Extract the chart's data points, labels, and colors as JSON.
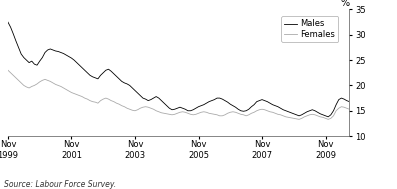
{
  "title": "",
  "ylabel_right": "%",
  "source": "Source: Labour Force Survey.",
  "ylim": [
    10,
    35
  ],
  "yticks": [
    10,
    15,
    20,
    25,
    30,
    35
  ],
  "x_tick_labels": [
    "Nov\n1999",
    "Nov\n2001",
    "Nov\n2003",
    "Nov\n2005",
    "Nov\n2007",
    "Nov\n2009"
  ],
  "x_tick_positions": [
    0,
    24,
    48,
    72,
    96,
    120
  ],
  "males_color": "#000000",
  "females_color": "#aaaaaa",
  "background_color": "#ffffff",
  "legend_labels": [
    "Males",
    "Females"
  ],
  "males_data": [
    32.5,
    31.5,
    30.2,
    28.8,
    27.5,
    26.2,
    25.5,
    25.0,
    24.5,
    24.8,
    24.2,
    24.0,
    24.8,
    25.5,
    26.5,
    27.0,
    27.2,
    27.0,
    26.8,
    26.7,
    26.5,
    26.3,
    26.0,
    25.7,
    25.4,
    25.0,
    24.5,
    24.0,
    23.5,
    23.0,
    22.5,
    22.0,
    21.7,
    21.5,
    21.3,
    22.0,
    22.5,
    23.0,
    23.2,
    22.8,
    22.3,
    21.8,
    21.3,
    20.8,
    20.5,
    20.3,
    20.0,
    19.5,
    19.0,
    18.5,
    18.0,
    17.5,
    17.3,
    17.0,
    17.2,
    17.5,
    17.8,
    17.5,
    17.0,
    16.5,
    16.0,
    15.5,
    15.2,
    15.3,
    15.5,
    15.7,
    15.5,
    15.3,
    15.0,
    15.0,
    15.2,
    15.5,
    15.8,
    16.0,
    16.2,
    16.5,
    16.8,
    17.0,
    17.2,
    17.5,
    17.5,
    17.3,
    17.0,
    16.7,
    16.3,
    16.0,
    15.7,
    15.3,
    15.0,
    14.9,
    15.0,
    15.3,
    15.8,
    16.2,
    16.8,
    17.0,
    17.2,
    17.0,
    16.8,
    16.5,
    16.2,
    16.0,
    15.8,
    15.5,
    15.2,
    15.0,
    14.8,
    14.6,
    14.4,
    14.2,
    14.0,
    14.2,
    14.5,
    14.8,
    15.0,
    15.2,
    15.0,
    14.7,
    14.4,
    14.2,
    14.0,
    13.8,
    14.2,
    15.0,
    16.2,
    17.2,
    17.5,
    17.3,
    17.0,
    16.8
  ],
  "females_data": [
    23.0,
    22.5,
    22.0,
    21.5,
    21.0,
    20.5,
    20.0,
    19.7,
    19.5,
    19.8,
    20.0,
    20.3,
    20.7,
    21.0,
    21.2,
    21.0,
    20.8,
    20.5,
    20.2,
    20.0,
    19.8,
    19.5,
    19.2,
    18.9,
    18.6,
    18.4,
    18.2,
    18.0,
    17.8,
    17.5,
    17.3,
    17.0,
    16.8,
    16.7,
    16.5,
    17.0,
    17.3,
    17.5,
    17.3,
    17.0,
    16.8,
    16.5,
    16.3,
    16.0,
    15.8,
    15.5,
    15.3,
    15.1,
    15.0,
    15.2,
    15.5,
    15.7,
    15.8,
    15.7,
    15.5,
    15.3,
    15.0,
    14.8,
    14.6,
    14.5,
    14.4,
    14.3,
    14.2,
    14.3,
    14.5,
    14.7,
    14.8,
    14.7,
    14.5,
    14.3,
    14.2,
    14.3,
    14.5,
    14.7,
    14.8,
    14.7,
    14.5,
    14.4,
    14.3,
    14.2,
    14.0,
    14.0,
    14.2,
    14.5,
    14.7,
    14.8,
    14.7,
    14.5,
    14.3,
    14.2,
    14.0,
    14.2,
    14.5,
    14.7,
    15.0,
    15.2,
    15.3,
    15.2,
    15.0,
    14.8,
    14.7,
    14.5,
    14.3,
    14.2,
    14.0,
    13.8,
    13.7,
    13.6,
    13.5,
    13.4,
    13.3,
    13.5,
    13.8,
    14.0,
    14.2,
    14.3,
    14.2,
    14.0,
    13.8,
    13.7,
    13.5,
    13.3,
    13.5,
    14.0,
    15.0,
    15.5,
    15.8,
    15.7,
    15.5,
    15.3
  ]
}
